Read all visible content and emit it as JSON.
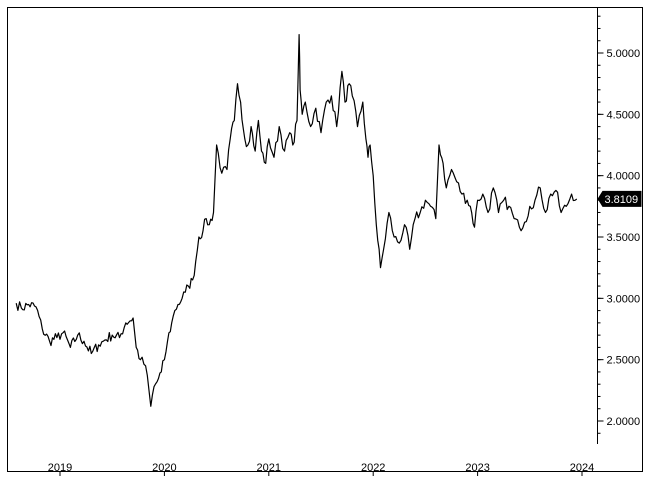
{
  "chart_data": {
    "type": "line",
    "title": "",
    "xlabel": "",
    "ylabel": "",
    "ylim": [
      1.8,
      5.4
    ],
    "y_ticks": [
      2.0,
      2.5,
      3.0,
      3.5,
      4.0,
      4.5,
      5.0
    ],
    "y_tick_labels": [
      "2.0000",
      "2.5000",
      "3.0000",
      "3.5000",
      "4.0000",
      "4.5000",
      "5.0000"
    ],
    "x_ticks": [
      2019,
      2020,
      2021,
      2022,
      2023,
      2024
    ],
    "x_tick_labels": [
      "2019",
      "2020",
      "2021",
      "2022",
      "2023",
      "2024"
    ],
    "last_value_label": "3.8109",
    "last_value": 3.8109,
    "grid": false,
    "y_axis_side": "right",
    "line_color": "#000000",
    "series": [
      {
        "x": [
          2018.58,
          2018.63,
          2018.7,
          2018.77,
          2018.83,
          2018.9,
          2018.97,
          2019.03,
          2019.1,
          2019.17,
          2019.23,
          2019.3,
          2019.37,
          2019.43,
          2019.5,
          2019.57,
          2019.63,
          2019.7,
          2019.73,
          2019.77,
          2019.82,
          2019.87,
          2019.9,
          2019.93,
          2019.97,
          2020.0,
          2020.03,
          2020.07,
          2020.1,
          2020.13,
          2020.17,
          2020.2,
          2020.23,
          2020.27,
          2020.3,
          2020.33,
          2020.37,
          2020.4,
          2020.43,
          2020.47,
          2020.5,
          2020.55,
          2020.6,
          2020.63,
          2020.67,
          2020.7,
          2020.73,
          2020.77,
          2020.8,
          2020.83,
          2020.87,
          2020.9,
          2020.93,
          2020.97,
          2021.0,
          2021.05,
          2021.1,
          2021.15,
          2021.2,
          2021.23,
          2021.27,
          2021.29,
          2021.3,
          2021.32,
          2021.35,
          2021.4,
          2021.45,
          2021.5,
          2021.55,
          2021.6,
          2021.65,
          2021.7,
          2021.73,
          2021.77,
          2021.8,
          2021.85,
          2021.9,
          2021.93,
          2021.95,
          2021.97,
          2022.0,
          2022.03,
          2022.07,
          2022.1,
          2022.15,
          2022.2,
          2022.25,
          2022.3,
          2022.35,
          2022.4,
          2022.45,
          2022.5,
          2022.55,
          2022.6,
          2022.63,
          2022.67,
          2022.7,
          2022.75,
          2022.8,
          2022.85,
          2022.9,
          2022.93,
          2022.97,
          2023.0,
          2023.05,
          2023.1,
          2023.15,
          2023.2,
          2023.25,
          2023.3,
          2023.35,
          2023.4,
          2023.45,
          2023.5,
          2023.55,
          2023.6,
          2023.65,
          2023.7,
          2023.75,
          2023.8,
          2023.85,
          2023.9,
          2023.95
        ],
        "values": [
          2.96,
          2.92,
          2.95,
          2.93,
          2.75,
          2.65,
          2.68,
          2.72,
          2.6,
          2.7,
          2.65,
          2.55,
          2.62,
          2.66,
          2.7,
          2.68,
          2.8,
          2.84,
          2.6,
          2.5,
          2.45,
          2.12,
          2.28,
          2.32,
          2.4,
          2.5,
          2.65,
          2.8,
          2.9,
          2.95,
          3.0,
          3.05,
          3.1,
          3.15,
          3.3,
          3.5,
          3.55,
          3.65,
          3.6,
          3.7,
          4.25,
          4.02,
          4.05,
          4.3,
          4.45,
          4.75,
          4.6,
          4.3,
          4.25,
          4.4,
          4.2,
          4.45,
          4.2,
          4.1,
          4.3,
          4.15,
          4.4,
          4.2,
          4.35,
          4.25,
          4.45,
          5.15,
          4.7,
          4.5,
          4.6,
          4.4,
          4.55,
          4.35,
          4.6,
          4.65,
          4.4,
          4.85,
          4.6,
          4.75,
          4.65,
          4.4,
          4.6,
          4.3,
          4.15,
          4.25,
          4.0,
          3.6,
          3.25,
          3.4,
          3.7,
          3.5,
          3.45,
          3.6,
          3.4,
          3.65,
          3.7,
          3.8,
          3.75,
          3.65,
          4.25,
          4.1,
          3.9,
          4.05,
          3.95,
          3.85,
          3.8,
          3.75,
          3.58,
          3.8,
          3.85,
          3.7,
          3.9,
          3.7,
          3.8,
          3.75,
          3.65,
          3.58,
          3.62,
          3.75,
          3.8,
          3.9,
          3.7,
          3.85,
          3.88,
          3.7,
          3.75,
          3.85,
          3.81
        ]
      }
    ]
  }
}
